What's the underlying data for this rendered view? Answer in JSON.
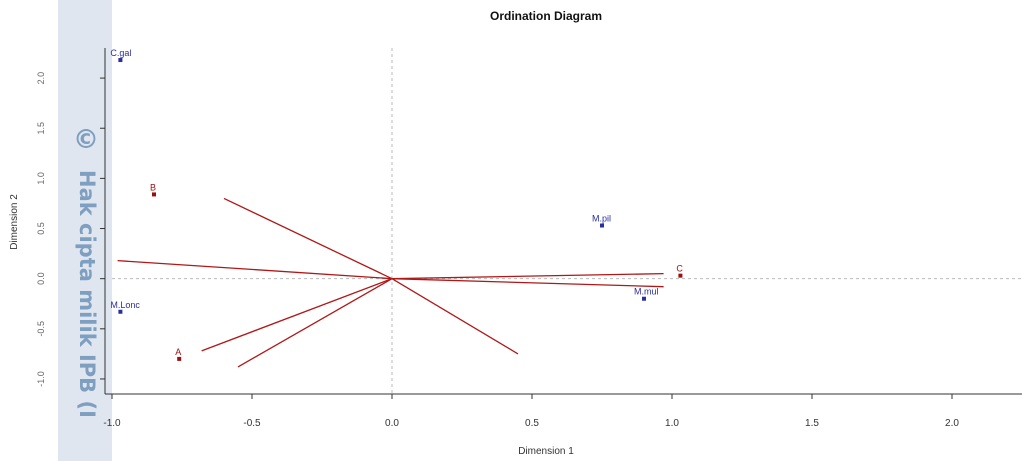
{
  "watermark": {
    "symbol": "©",
    "text": "Hak cipta milik IPB (I"
  },
  "chart_data": {
    "type": "scatter",
    "title": "Ordination Diagram",
    "xlabel": "Dimension 1",
    "ylabel": "Dimension 2",
    "xlim": [
      -1.0,
      2.25
    ],
    "ylim": [
      -1.15,
      2.3
    ],
    "x_ticks": [
      {
        "value": -1.0,
        "label": "-1.0"
      },
      {
        "value": -0.5,
        "label": "-0.5"
      },
      {
        "value": 0.0,
        "label": "0.0"
      },
      {
        "value": 0.5,
        "label": "0.5"
      },
      {
        "value": 1.0,
        "label": "1.0"
      },
      {
        "value": 1.5,
        "label": "1.5"
      },
      {
        "value": 2.0,
        "label": "2.0"
      }
    ],
    "y_ticks": [
      {
        "value": -1.0,
        "label": "-1.0"
      },
      {
        "value": -0.5,
        "label": "-0.5"
      },
      {
        "value": 0.0,
        "label": "0.0"
      },
      {
        "value": 0.5,
        "label": "0.5"
      },
      {
        "value": 1.0,
        "label": "1.0"
      },
      {
        "value": 1.5,
        "label": "1.5"
      },
      {
        "value": 2.0,
        "label": "2.0"
      }
    ],
    "reference_lines": {
      "x": 0,
      "y": 0,
      "style": "dashed"
    },
    "species_points": [
      {
        "label": "C.gal",
        "x": -0.97,
        "y": 2.18
      },
      {
        "label": "M.pil",
        "x": 0.75,
        "y": 0.53
      },
      {
        "label": "M.mul",
        "x": 0.9,
        "y": -0.2
      },
      {
        "label": "M.Lonc",
        "x": -0.97,
        "y": -0.33
      }
    ],
    "group_points": [
      {
        "label": "B",
        "x": -0.85,
        "y": 0.84
      },
      {
        "label": "C",
        "x": 1.03,
        "y": 0.03
      },
      {
        "label": "A",
        "x": -0.76,
        "y": -0.8
      }
    ],
    "vectors": [
      {
        "label": "",
        "x": -0.6,
        "y": 0.8
      },
      {
        "label": "",
        "x": -0.98,
        "y": 0.18
      },
      {
        "label": "",
        "x": 0.97,
        "y": 0.05
      },
      {
        "label": "",
        "x": 0.97,
        "y": -0.08
      },
      {
        "label": "",
        "x": 0.45,
        "y": -0.75
      },
      {
        "label": "",
        "x": -0.68,
        "y": -0.72
      },
      {
        "label": "",
        "x": -0.55,
        "y": -0.88
      }
    ],
    "colors": {
      "species": "#2b2f9e",
      "group": "#9a1010",
      "vector": "#b01818",
      "vector_label": "#c8c8c8",
      "axis": "#333333",
      "refline": "#bbbbbb"
    },
    "grid": false,
    "legend": "none"
  }
}
